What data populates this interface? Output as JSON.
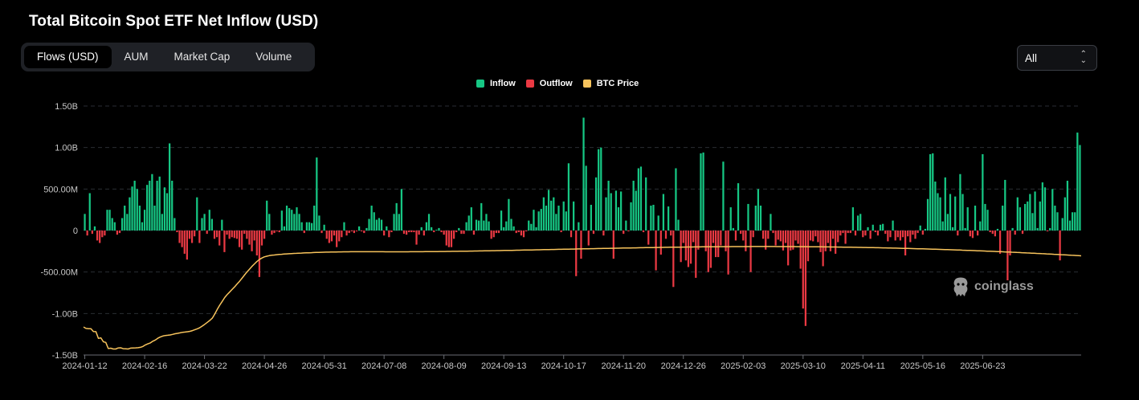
{
  "title": "Total Bitcoin Spot ETF Net Inflow (USD)",
  "tabs": [
    {
      "label": "Flows (USD)",
      "active": true
    },
    {
      "label": "AUM",
      "active": false
    },
    {
      "label": "Market Cap",
      "active": false
    },
    {
      "label": "Volume",
      "active": false
    }
  ],
  "range_select": {
    "value": "All",
    "icon": "up-down-chevron-icon"
  },
  "legend": [
    {
      "label": "Inflow",
      "color": "#16c784"
    },
    {
      "label": "Outflow",
      "color": "#ea3943"
    },
    {
      "label": "BTC Price",
      "color": "#f7c35c"
    }
  ],
  "watermark": {
    "text": "coinglass",
    "icon": "coinglass-logo-icon"
  },
  "colors": {
    "inflow": "#16c784",
    "outflow": "#ea3943",
    "price": "#f7c35c",
    "grid": "#2a2d33",
    "background": "#000000"
  },
  "chart_data": {
    "type": "bar",
    "title": "Total Bitcoin Spot ETF Net Inflow (USD)",
    "ylim": [
      -1500000000,
      1500000000
    ],
    "y_ticks": [
      1500000000,
      1000000000,
      500000000,
      0,
      -500000000,
      -1000000000,
      -1500000000
    ],
    "y_tick_labels": [
      "1.50B",
      "1.00B",
      "500.00M",
      "0",
      "-500.00M",
      "-1.00B",
      "-1.50B"
    ],
    "x_tick_labels": [
      "2024-01-12",
      "2024-02-16",
      "2024-03-22",
      "2024-04-26",
      "2024-05-31",
      "2024-07-08",
      "2024-08-09",
      "2024-09-13",
      "2024-10-17",
      "2024-11-20",
      "2024-12-26",
      "2025-02-03",
      "2025-03-10",
      "2025-04-11",
      "2025-05-16",
      "2025-06-23"
    ],
    "x_tick_index": [
      0,
      24,
      48,
      72,
      96,
      120,
      144,
      168,
      192,
      216,
      240,
      264,
      288,
      312,
      336,
      360
    ],
    "x_range": [
      "2024-01-11",
      "2025-07-11"
    ],
    "grid": true,
    "legend_position": "top-center",
    "series": [
      {
        "name": "Inflow/Outflow",
        "unit": "USD",
        "values": [
          200000000,
          -60000000,
          450000000,
          -40000000,
          50000000,
          -120000000,
          -150000000,
          -80000000,
          -60000000,
          250000000,
          250000000,
          150000000,
          100000000,
          -50000000,
          -30000000,
          150000000,
          300000000,
          200000000,
          400000000,
          530000000,
          600000000,
          500000000,
          300000000,
          100000000,
          250000000,
          550000000,
          600000000,
          680000000,
          300000000,
          600000000,
          650000000,
          200000000,
          520000000,
          450000000,
          1050000000,
          600000000,
          150000000,
          -20000000,
          -150000000,
          -200000000,
          -280000000,
          -350000000,
          -100000000,
          -150000000,
          -70000000,
          400000000,
          -150000000,
          150000000,
          200000000,
          -40000000,
          250000000,
          140000000,
          -100000000,
          -80000000,
          -180000000,
          130000000,
          -260000000,
          -50000000,
          -100000000,
          -80000000,
          -90000000,
          -100000000,
          -200000000,
          -230000000,
          -40000000,
          -100000000,
          -170000000,
          -250000000,
          -120000000,
          -300000000,
          -560000000,
          -180000000,
          -100000000,
          360000000,
          200000000,
          -50000000,
          -30000000,
          -10000000,
          -20000000,
          240000000,
          50000000,
          300000000,
          270000000,
          250000000,
          200000000,
          280000000,
          200000000,
          100000000,
          -30000000,
          100000000,
          100000000,
          90000000,
          300000000,
          880000000,
          180000000,
          -30000000,
          70000000,
          -100000000,
          -150000000,
          -130000000,
          -60000000,
          -200000000,
          -130000000,
          -80000000,
          100000000,
          -60000000,
          -30000000,
          -10000000,
          -30000000,
          -10000000,
          50000000,
          -10000000,
          -30000000,
          30000000,
          140000000,
          300000000,
          220000000,
          130000000,
          150000000,
          130000000,
          -60000000,
          50000000,
          -80000000,
          -20000000,
          200000000,
          330000000,
          200000000,
          500000000,
          -40000000,
          -50000000,
          -20000000,
          -20000000,
          -20000000,
          -170000000,
          -50000000,
          40000000,
          -60000000,
          100000000,
          200000000,
          40000000,
          -20000000,
          10000000,
          30000000,
          -20000000,
          -50000000,
          -180000000,
          -200000000,
          -200000000,
          -100000000,
          -20000000,
          30000000,
          -40000000,
          -40000000,
          100000000,
          180000000,
          280000000,
          -50000000,
          130000000,
          120000000,
          330000000,
          120000000,
          200000000,
          110000000,
          -100000000,
          -80000000,
          -30000000,
          -30000000,
          240000000,
          40000000,
          110000000,
          380000000,
          140000000,
          50000000,
          -30000000,
          -20000000,
          -60000000,
          -80000000,
          -10000000,
          120000000,
          80000000,
          250000000,
          40000000,
          230000000,
          260000000,
          400000000,
          300000000,
          490000000,
          360000000,
          400000000,
          200000000,
          300000000,
          -20000000,
          350000000,
          230000000,
          810000000,
          -80000000,
          350000000,
          -550000000,
          100000000,
          -340000000,
          1360000000,
          780000000,
          -180000000,
          310000000,
          -40000000,
          640000000,
          980000000,
          1000000000,
          -60000000,
          400000000,
          600000000,
          450000000,
          -340000000,
          480000000,
          280000000,
          470000000,
          -40000000,
          120000000,
          -10000000,
          340000000,
          600000000,
          480000000,
          750000000,
          770000000,
          -20000000,
          640000000,
          -170000000,
          300000000,
          310000000,
          -480000000,
          180000000,
          -290000000,
          440000000,
          -100000000,
          290000000,
          -60000000,
          -680000000,
          750000000,
          130000000,
          -380000000,
          -150000000,
          -360000000,
          -440000000,
          -400000000,
          -140000000,
          -570000000,
          -230000000,
          930000000,
          940000000,
          -250000000,
          -500000000,
          -450000000,
          -150000000,
          -320000000,
          -320000000,
          -180000000,
          830000000,
          -250000000,
          -530000000,
          280000000,
          30000000,
          -120000000,
          570000000,
          -40000000,
          -120000000,
          -250000000,
          320000000,
          -500000000,
          -80000000,
          300000000,
          500000000,
          300000000,
          -100000000,
          -230000000,
          -100000000,
          200000000,
          -30000000,
          -180000000,
          -110000000,
          -130000000,
          -240000000,
          -150000000,
          -420000000,
          -240000000,
          -230000000,
          -120000000,
          -160000000,
          -460000000,
          -940000000,
          -1150000000,
          -370000000,
          -120000000,
          -130000000,
          -70000000,
          -140000000,
          -260000000,
          -430000000,
          -250000000,
          -150000000,
          -250000000,
          -100000000,
          -280000000,
          -140000000,
          -60000000,
          -30000000,
          -160000000,
          -30000000,
          -30000000,
          280000000,
          -60000000,
          180000000,
          200000000,
          -80000000,
          -60000000,
          40000000,
          -100000000,
          70000000,
          -20000000,
          -60000000,
          70000000,
          80000000,
          -40000000,
          -130000000,
          -80000000,
          120000000,
          -120000000,
          -80000000,
          -120000000,
          -80000000,
          -300000000,
          -70000000,
          -140000000,
          -50000000,
          -100000000,
          -30000000,
          60000000,
          -50000000,
          20000000,
          380000000,
          920000000,
          930000000,
          590000000,
          450000000,
          400000000,
          110000000,
          640000000,
          200000000,
          440000000,
          40000000,
          410000000,
          -60000000,
          680000000,
          440000000,
          30000000,
          280000000,
          -70000000,
          -90000000,
          300000000,
          -60000000,
          110000000,
          920000000,
          320000000,
          250000000,
          -20000000,
          -40000000,
          -70000000,
          20000000,
          -280000000,
          300000000,
          610000000,
          -600000000,
          -300000000,
          30000000,
          -50000000,
          400000000,
          280000000,
          -40000000,
          320000000,
          350000000,
          440000000,
          210000000,
          470000000,
          30000000,
          350000000,
          580000000,
          520000000,
          -10000000,
          30000000,
          500000000,
          300000000,
          220000000,
          -360000000,
          150000000,
          400000000,
          600000000,
          120000000,
          220000000,
          220000000,
          1180000000,
          1030000000
        ]
      },
      {
        "name": "BTC Price",
        "unit": "USD",
        "values": [
          46341,
          45904,
          45840,
          45814,
          44973,
          44952,
          42934,
          43101,
          41943,
          41747,
          39934,
          40022,
          39785,
          39792,
          40102,
          40148,
          39874,
          39830,
          39790,
          40048,
          40099,
          40117,
          40170,
          40286,
          40561,
          41006,
          41326,
          41601,
          42109,
          42473,
          42981,
          43338,
          43626,
          43803,
          43864,
          43961,
          44123,
          44314,
          44456,
          44592,
          44747,
          44823,
          44914,
          45031,
          45256,
          45543,
          45811,
          46141,
          46622,
          47150,
          47710,
          48290,
          48964,
          50149,
          51526,
          52805,
          53918,
          55060,
          55925,
          56698,
          57478,
          58235,
          59109,
          59922,
          60802,
          61748,
          62653,
          63502,
          64340,
          65076,
          65751,
          66360,
          66818,
          67167,
          67357,
          67527,
          67645,
          67731,
          67812,
          67878,
          67937,
          67998,
          68053,
          68105,
          68147,
          68186,
          68224,
          68261,
          68296,
          68330,
          68362,
          68393,
          68423,
          68451,
          68478,
          68503,
          68527,
          68549,
          68569,
          68588,
          68606,
          68622,
          68636,
          68648,
          68659,
          68668,
          68676,
          68683,
          68688,
          68692,
          68695,
          68697,
          68698,
          68699,
          68699,
          68698,
          68697,
          68696,
          68694,
          68692,
          68690,
          68688,
          68686,
          68684,
          68683,
          68682,
          68681,
          68681,
          68681,
          68682,
          68683,
          68685,
          68688,
          68691,
          68695,
          68699,
          68704,
          68709,
          68715,
          68721,
          68728,
          68735,
          68743,
          68751,
          68759,
          68768,
          68777,
          68786,
          68796,
          68806,
          68816,
          68827,
          68838,
          68849,
          68861,
          68872,
          68884,
          68896,
          68909,
          68921,
          68934,
          68947,
          68960,
          68974,
          68987,
          69001,
          69015,
          69029,
          69043,
          69057,
          69072,
          69086,
          69101,
          69115,
          69130,
          69145,
          69160,
          69175,
          69190,
          69205,
          69220,
          69235,
          69250,
          69266,
          69281,
          69296,
          69311,
          69327,
          69342,
          69357,
          69373,
          69388,
          69403,
          69418,
          69434,
          69449,
          69464,
          69479,
          69494,
          69510,
          69525,
          69540,
          69555,
          69570,
          69585,
          69600,
          69615,
          69630,
          69644,
          69659,
          69674,
          69688,
          69703,
          69717,
          69731,
          69746,
          69760,
          69774,
          69788,
          69801,
          69815,
          69829,
          69842,
          69855,
          69869,
          69882,
          69895,
          69907,
          69920,
          69932,
          69945,
          69957,
          69969,
          69980,
          69992,
          70003,
          70014,
          70025,
          70036,
          70046,
          70056,
          70066,
          70076,
          70085,
          70095,
          70104,
          70112,
          70121,
          70129,
          70137,
          70145,
          70152,
          70159,
          70166,
          70173,
          70179,
          70185,
          70191,
          70196,
          70201,
          70206,
          70211,
          70215,
          70219,
          70223,
          70226,
          70229,
          70232,
          70234,
          70236,
          70238,
          70239,
          70240,
          70241,
          70241,
          70241,
          70241,
          70240,
          70239,
          70238,
          70236,
          70234,
          70232,
          70229,
          70226,
          70223,
          70219,
          70215,
          70211,
          70206,
          70201,
          70196,
          70190,
          70184,
          70178,
          70171,
          70164,
          70157,
          70149,
          70141,
          70133,
          70124,
          70115,
          70106,
          70096,
          70086,
          70076,
          70065,
          70054,
          70043,
          70031,
          70019,
          70007,
          69994,
          69981,
          69968,
          69954,
          69940,
          69926,
          69911,
          69896,
          69881,
          69865,
          69849,
          69833,
          69816,
          69799,
          69782,
          69764,
          69746,
          69728,
          69709,
          69690,
          69671,
          69651,
          69631,
          69611,
          69590,
          69569,
          69548,
          69526,
          69504,
          69482,
          69459,
          69436,
          69413,
          69389,
          69365,
          69341,
          69316,
          69291,
          69266,
          69240,
          69214,
          69188,
          69161,
          69134,
          69107,
          69079,
          69051,
          69023,
          68994,
          68965,
          68936,
          68906,
          68876,
          68846,
          68815,
          68784,
          68753,
          68721,
          68689,
          68657,
          68624,
          68591,
          68558,
          68524,
          68490,
          68456,
          68421,
          68386,
          68351,
          68315,
          68279,
          68243,
          68206,
          68169,
          68132,
          68094,
          68056,
          68018,
          67979,
          67940,
          67901,
          67861,
          67821,
          67781,
          67740,
          67699,
          67658,
          67616,
          67574,
          67532,
          67489
        ]
      }
    ]
  }
}
